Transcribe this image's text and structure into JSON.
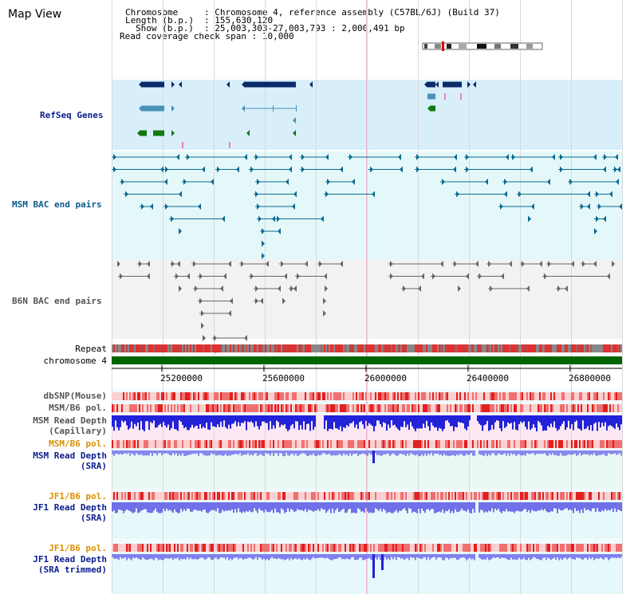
{
  "header": {
    "title": "Map View",
    "chromosome_key": "Chromosome",
    "chromosome_val": "Chromosome 4, reference assembly (C57BL/6J) (Build 37)",
    "length_key": "Length (b.p.)",
    "length_val": "155,630,120",
    "show_key": "Show (b.p.)",
    "show_val": "25,003,303-27,003,793 : 2,000,491 bp",
    "span_key": "Read coverage check span",
    "span_val": "10,000"
  },
  "tracks": {
    "refseq": {
      "label": "RefSeq Genes",
      "color": "#0a1e8c"
    },
    "msm_bac": {
      "label": "MSM BAC end pairs",
      "color": "#0a5a8c"
    },
    "b6n_bac": {
      "label": "B6N BAC end pairs",
      "color": "#555555"
    },
    "repeat": {
      "label": "Repeat"
    },
    "chromosome": {
      "label": "chromosome 4",
      "color": "#006400"
    },
    "dbsnp": {
      "label": "dbSNP(Mouse)",
      "color": "#555555"
    },
    "msm_b6_pol": {
      "label": "MSM/B6 pol.",
      "color": "#555555"
    },
    "msm_depth_cap": {
      "label_1": "MSM Read Depth",
      "label_2": "(Capillary)",
      "color": "#555555"
    },
    "msm_b6_pol_2": {
      "label": "MSM/B6 pol.",
      "color": "#d99000"
    },
    "msm_depth_sra": {
      "label_1": "MSM Read Depth",
      "label_2": "(SRA)",
      "color": "#0a1e8c"
    },
    "jf1_b6_pol": {
      "label": "JF1/B6 pol.",
      "color": "#d99000"
    },
    "jf1_depth_sra": {
      "label_1": "JF1 Read Depth",
      "label_2": "(SRA)",
      "color": "#0a1e8c"
    },
    "jf1_b6_pol_2": {
      "label": "JF1/B6 pol.",
      "color": "#d99000"
    },
    "jf1_depth_trim": {
      "label_1": "JF1 Read Depth",
      "label_2": "(SRA trimmed)",
      "color": "#0a1e8c"
    }
  },
  "axis": {
    "ticks": [
      "25200000",
      "25600000",
      "26000000",
      "26400000",
      "26800000"
    ],
    "tick_values": [
      25200000,
      25600000,
      26000000,
      26400000,
      26800000
    ],
    "start": 25003303,
    "end": 27003793
  },
  "colors": {
    "refseq_bg": "#d8effa",
    "msm_bg": "#e4f8fa",
    "b6n_bg": "#f2f2f2",
    "lower_bg": "#eaf8f4",
    "dark_gene": "#0a2a6a",
    "mid_gene": "#4a90b8",
    "green_gene": "#107a10",
    "depth_blue": "#2a2ad8",
    "depth_light": "#8080f0",
    "pol_red": "#e83030"
  }
}
